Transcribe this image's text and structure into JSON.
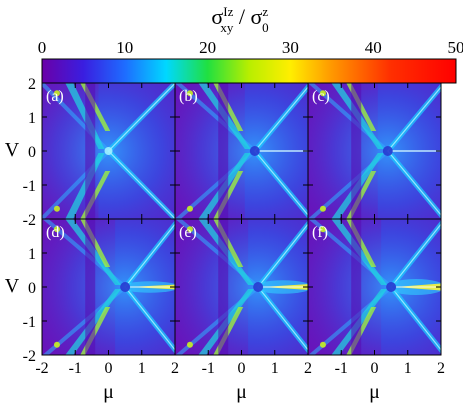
{
  "colorbar": {
    "title_sigma": "σ",
    "title_sup_num": "Iz",
    "title_sub_num": "xy",
    "title_slash": " / ",
    "title_sigma_den": "σ",
    "title_sup_den": "z",
    "title_sub_den": "0",
    "range": [
      0,
      50
    ],
    "ticks": [
      "0",
      "10",
      "20",
      "30",
      "40",
      "50"
    ],
    "stops": [
      {
        "v": 0,
        "color": "#6a00a8"
      },
      {
        "v": 5,
        "color": "#3a1ee0"
      },
      {
        "v": 10,
        "color": "#1e6cff"
      },
      {
        "v": 15,
        "color": "#00d8ff"
      },
      {
        "v": 20,
        "color": "#20e040"
      },
      {
        "v": 25,
        "color": "#b8ee00"
      },
      {
        "v": 30,
        "color": "#ffee00"
      },
      {
        "v": 35,
        "color": "#ff9800"
      },
      {
        "v": 42,
        "color": "#ff3000"
      },
      {
        "v": 50,
        "color": "#ff0000"
      }
    ]
  },
  "chart_data": {
    "type": "heatmap",
    "xlabel": "μ",
    "ylabel": "V",
    "xlim": [
      -2,
      2
    ],
    "ylim": [
      -2,
      2
    ],
    "xticks": [
      "-2",
      "-1",
      "0",
      "1",
      "2"
    ],
    "yticks": [
      "2",
      "1",
      "0",
      "-1",
      "-2"
    ],
    "grid": false,
    "layout": "2 rows × 3 columns, shared axes",
    "panels": [
      {
        "label": "(a)",
        "row": 0,
        "col": 0,
        "cone_vertex_mu": 0.0,
        "streak": "none",
        "strength": 0.0
      },
      {
        "label": "(b)",
        "row": 0,
        "col": 1,
        "cone_vertex_mu": 0.4,
        "streak": "weak",
        "strength": 0.15
      },
      {
        "label": "(c)",
        "row": 0,
        "col": 2,
        "cone_vertex_mu": 0.4,
        "streak": "weak",
        "strength": 0.2
      },
      {
        "label": "(d)",
        "row": 1,
        "col": 0,
        "cone_vertex_mu": 0.5,
        "streak": "strong",
        "strength": 0.55
      },
      {
        "label": "(e)",
        "row": 1,
        "col": 1,
        "cone_vertex_mu": 0.5,
        "streak": "strong",
        "strength": 0.75
      },
      {
        "label": "(f)",
        "row": 1,
        "col": 2,
        "cone_vertex_mu": 0.5,
        "streak": "strong",
        "strength": 1.0
      }
    ]
  }
}
